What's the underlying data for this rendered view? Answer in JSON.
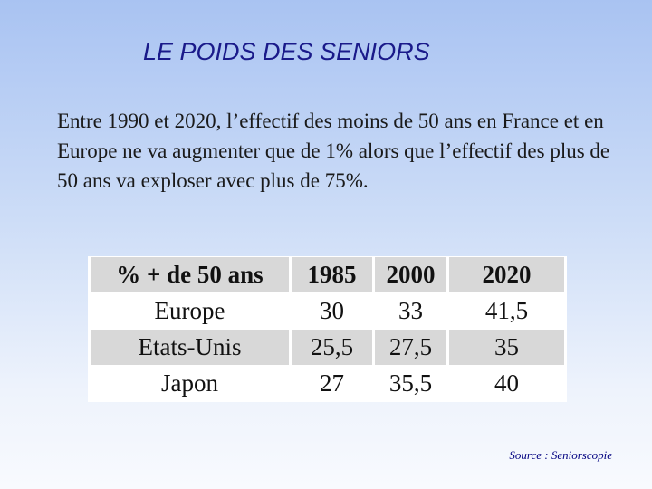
{
  "title": "LE POIDS DES SENIORS",
  "paragraph": "Entre 1990 et 2020, l’effectif des moins de 50 ans en France et en Europe ne va augmenter que de 1% alors que l’effectif des plus de 50 ans va exploser avec plus de 75%.",
  "table": {
    "headers": [
      "% + de 50 ans",
      "1985",
      "2000",
      "2020"
    ],
    "rows": [
      {
        "label": "Europe",
        "values": [
          "30",
          "33",
          "41,5"
        ]
      },
      {
        "label": "Etats-Unis",
        "values": [
          "25,5",
          "27,5",
          "35"
        ]
      },
      {
        "label": "Japon",
        "values": [
          "27",
          "35,5",
          "40"
        ]
      }
    ]
  },
  "source": "Source : Seniorscopie",
  "colors": {
    "title": "#1a1a8a",
    "row_shade": "#d8d8d8",
    "source": "#000080"
  }
}
